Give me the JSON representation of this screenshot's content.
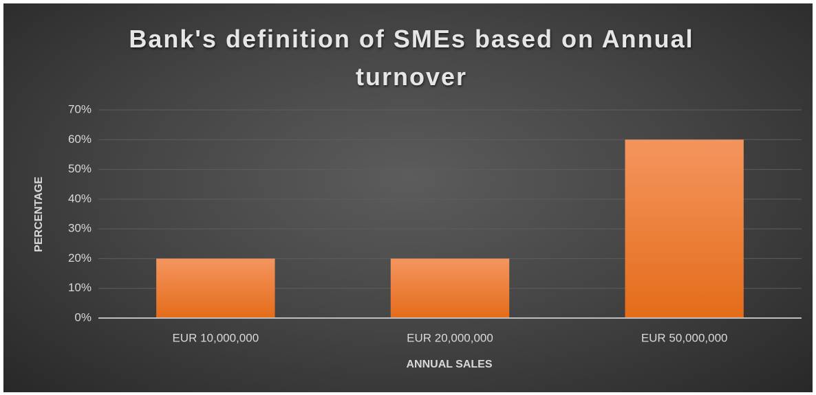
{
  "chart_data": {
    "type": "bar",
    "title": "Bank's definition of SMEs based on Annual turnover",
    "categories": [
      "EUR 10,000,000",
      "EUR 20,000,000",
      "EUR 50,000,000"
    ],
    "values": [
      20,
      20,
      60
    ],
    "color": "#ed7d31",
    "x_label": "ANNUAL SALES",
    "y_label": "PERCENTAGE",
    "ylim": [
      0,
      70
    ],
    "yticks": [
      {
        "value": 0,
        "label": "0%"
      },
      {
        "value": 10,
        "label": "10%"
      },
      {
        "value": 20,
        "label": "20%"
      },
      {
        "value": 30,
        "label": "30%"
      },
      {
        "value": 40,
        "label": "40%"
      },
      {
        "value": 50,
        "label": "50%"
      },
      {
        "value": 60,
        "label": "60%"
      },
      {
        "value": 70,
        "label": "70%"
      }
    ],
    "grid": true
  }
}
